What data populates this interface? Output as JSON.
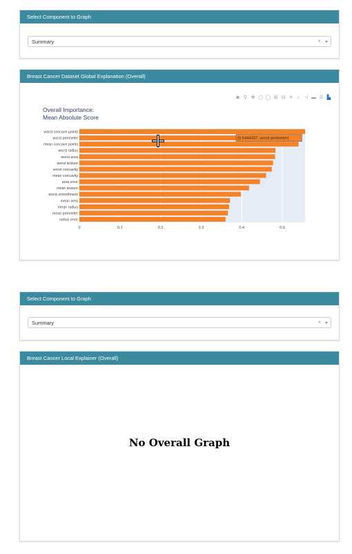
{
  "panels": [
    {
      "header": "Select Component to Graph",
      "select_value": "Summary",
      "clear_glyph": "×"
    },
    {
      "header": "Breast Cancer Dataset Global Explanation (Overall)"
    },
    {
      "header": "Select Component to Graph",
      "select_value": "Summary",
      "clear_glyph": "×"
    },
    {
      "header": "Breast Cancer Local Explainer (Overall)",
      "message": "No Overall Graph"
    }
  ],
  "modebar": [
    "camera-icon",
    "zoom-icon",
    "pan-icon",
    "box-select-icon",
    "lasso-icon",
    "zoom-in-icon",
    "zoom-out-icon",
    "autoscale-icon",
    "reset-axes-icon",
    "spike-lines-icon",
    "hover-closest-icon",
    "hover-compare-icon",
    "plotly-logo-icon"
  ],
  "tooltip": "(0.5444337, worst perimeter)",
  "colors": {
    "header": "#3b8aa0",
    "bar": "#f58225",
    "plot_bg": "#e5ecf6"
  },
  "chart_data": {
    "type": "bar",
    "orientation": "horizontal",
    "title": "Overall Importance:",
    "subtitle": "Mean Absolute Score",
    "categories": [
      "worst concave points",
      "worst perimeter",
      "mean concave points",
      "worst radius",
      "worst area",
      "worst texture",
      "worst concavity",
      "mean concavity",
      "area error",
      "mean texture",
      "worst smoothness",
      "mean area",
      "mean radius",
      "mean perimeter",
      "radius error"
    ],
    "values": [
      0.556,
      0.5444337,
      0.54,
      0.483,
      0.482,
      0.477,
      0.474,
      0.46,
      0.445,
      0.418,
      0.398,
      0.371,
      0.369,
      0.366,
      0.36
    ],
    "xticks": [
      "0",
      "0.1",
      "0.2",
      "0.3",
      "0.4",
      "0.5"
    ],
    "xlim": [
      0,
      0.556
    ],
    "grid": true
  }
}
